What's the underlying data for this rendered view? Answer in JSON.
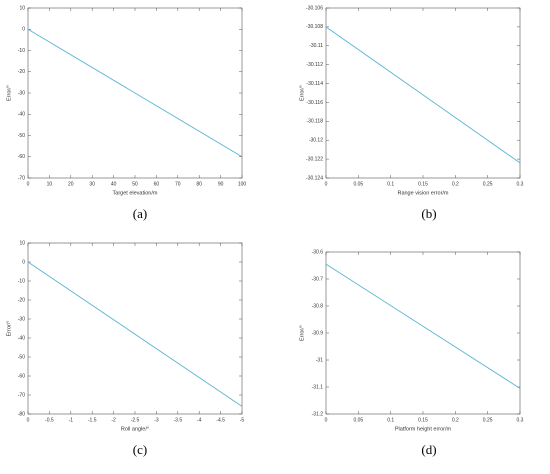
{
  "chart_data": [
    {
      "type": "line",
      "caption": "(a)",
      "xlabel": "Target elevation/m",
      "ylabel": "Error/°",
      "x": [
        0,
        100
      ],
      "values": [
        0,
        -60
      ],
      "color": "#5ab4d6",
      "xlim": [
        0,
        100
      ],
      "xticks": [
        0,
        10,
        20,
        30,
        40,
        50,
        60,
        70,
        80,
        90,
        100
      ],
      "ylim": [
        -70,
        10
      ],
      "yticks": [
        10,
        0,
        -10,
        -20,
        -30,
        -40,
        -50,
        -60,
        -70
      ]
    },
    {
      "type": "line",
      "caption": "(b)",
      "xlabel": "Range vision error/m",
      "ylabel": "Error/°",
      "x": [
        0,
        0.3
      ],
      "values": [
        -30.108,
        -30.1224
      ],
      "color": "#5ab4d6",
      "xlim": [
        0,
        0.3
      ],
      "xticks": [
        0,
        0.05,
        0.1,
        0.15,
        0.2,
        0.25,
        0.3
      ],
      "ylim": [
        -30.124,
        -30.106
      ],
      "yticks": [
        -30.106,
        -30.108,
        -30.11,
        -30.112,
        -30.114,
        -30.116,
        -30.118,
        -30.12,
        -30.122,
        -30.124
      ]
    },
    {
      "type": "line",
      "caption": "(c)",
      "xlabel": "Roll angle/°",
      "ylabel": "Error/°",
      "x": [
        0,
        -5
      ],
      "values": [
        0,
        -76
      ],
      "color": "#5ab4d6",
      "xlim": [
        0,
        -5
      ],
      "xticks": [
        0,
        -0.5,
        -1,
        -1.5,
        -2,
        -2.5,
        -3,
        -3.5,
        -4,
        -4.5,
        -5
      ],
      "ylim": [
        -80,
        10
      ],
      "yticks": [
        10,
        0,
        -10,
        -20,
        -30,
        -40,
        -50,
        -60,
        -70,
        -80
      ]
    },
    {
      "type": "line",
      "caption": "(d)",
      "xlabel": "Platform height error/m",
      "ylabel": "Error/°",
      "x": [
        0,
        0.3
      ],
      "values": [
        -30.645,
        -31.105
      ],
      "color": "#5ab4d6",
      "xlim": [
        0,
        0.3
      ],
      "xticks": [
        0,
        0.05,
        0.1,
        0.15,
        0.2,
        0.25,
        0.3
      ],
      "ylim": [
        -31.2,
        -30.6
      ],
      "yticks": [
        -30.6,
        -30.7,
        -30.8,
        -30.9,
        -31,
        -31.1,
        -31.2
      ]
    }
  ]
}
